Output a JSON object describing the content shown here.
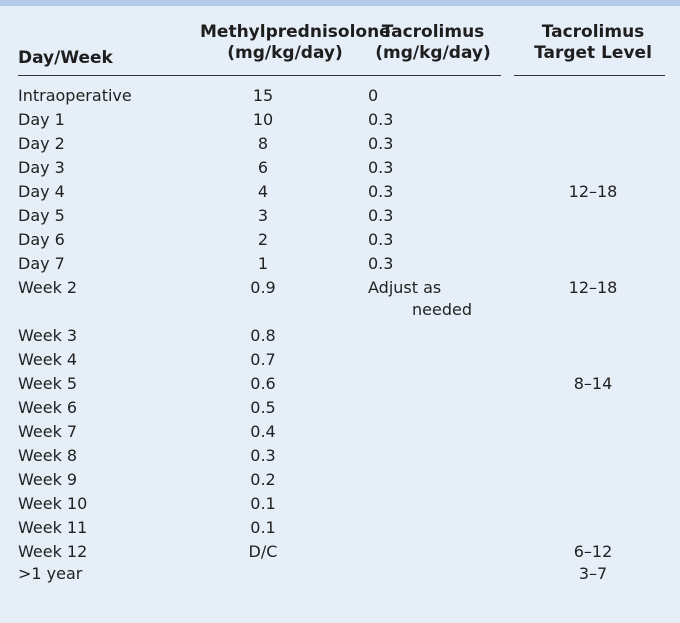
{
  "headers": {
    "day": "Day/Week",
    "methyl_line1": "Methylprednisolone",
    "methyl_line2": "(mg/kg/day)",
    "tac_line1": "Tacrolimus",
    "tac_line2": "(mg/kg/day)",
    "target_line1": "Tacrolimus",
    "target_line2": "Target Level"
  },
  "rows": [
    {
      "day": "Intraoperative",
      "methyl": "15",
      "tac": "0",
      "target": ""
    },
    {
      "day": "Day 1",
      "methyl": "10",
      "tac": "0.3",
      "target": ""
    },
    {
      "day": "Day 2",
      "methyl": "8",
      "tac": "0.3",
      "target": ""
    },
    {
      "day": "Day 3",
      "methyl": "6",
      "tac": "0.3",
      "target": ""
    },
    {
      "day": "Day 4",
      "methyl": "4",
      "tac": "0.3",
      "target": "12–18"
    },
    {
      "day": "Day 5",
      "methyl": "3",
      "tac": "0.3",
      "target": ""
    },
    {
      "day": "Day 6",
      "methyl": "2",
      "tac": "0.3",
      "target": ""
    },
    {
      "day": "Day 7",
      "methyl": "1",
      "tac": "0.3",
      "target": ""
    },
    {
      "day": "Week 2",
      "methyl": "0.9",
      "tac_line1": "Adjust as",
      "tac_line2": "needed",
      "target": "12–18"
    },
    {
      "day": "Week 3",
      "methyl": "0.8",
      "tac": "",
      "target": ""
    },
    {
      "day": "Week 4",
      "methyl": "0.7",
      "tac": "",
      "target": ""
    },
    {
      "day": "Week 5",
      "methyl": "0.6",
      "tac": "",
      "target": "8–14"
    },
    {
      "day": "Week 6",
      "methyl": "0.5",
      "tac": "",
      "target": ""
    },
    {
      "day": "Week 7",
      "methyl": "0.4",
      "tac": "",
      "target": ""
    },
    {
      "day": "Week 8",
      "methyl": "0.3",
      "tac": "",
      "target": ""
    },
    {
      "day": "Week 9",
      "methyl": "0.2",
      "tac": "",
      "target": ""
    },
    {
      "day": "Week 10",
      "methyl": "0.1",
      "tac": "",
      "target": ""
    },
    {
      "day": "Week 11",
      "methyl": "0.1",
      "tac": "",
      "target": ""
    },
    {
      "day": "Week 12",
      "methyl": "D/C",
      "tac": "",
      "target": "6–12"
    },
    {
      "day": ">1 year",
      "methyl": "",
      "tac": "",
      "target": "3–7"
    }
  ]
}
